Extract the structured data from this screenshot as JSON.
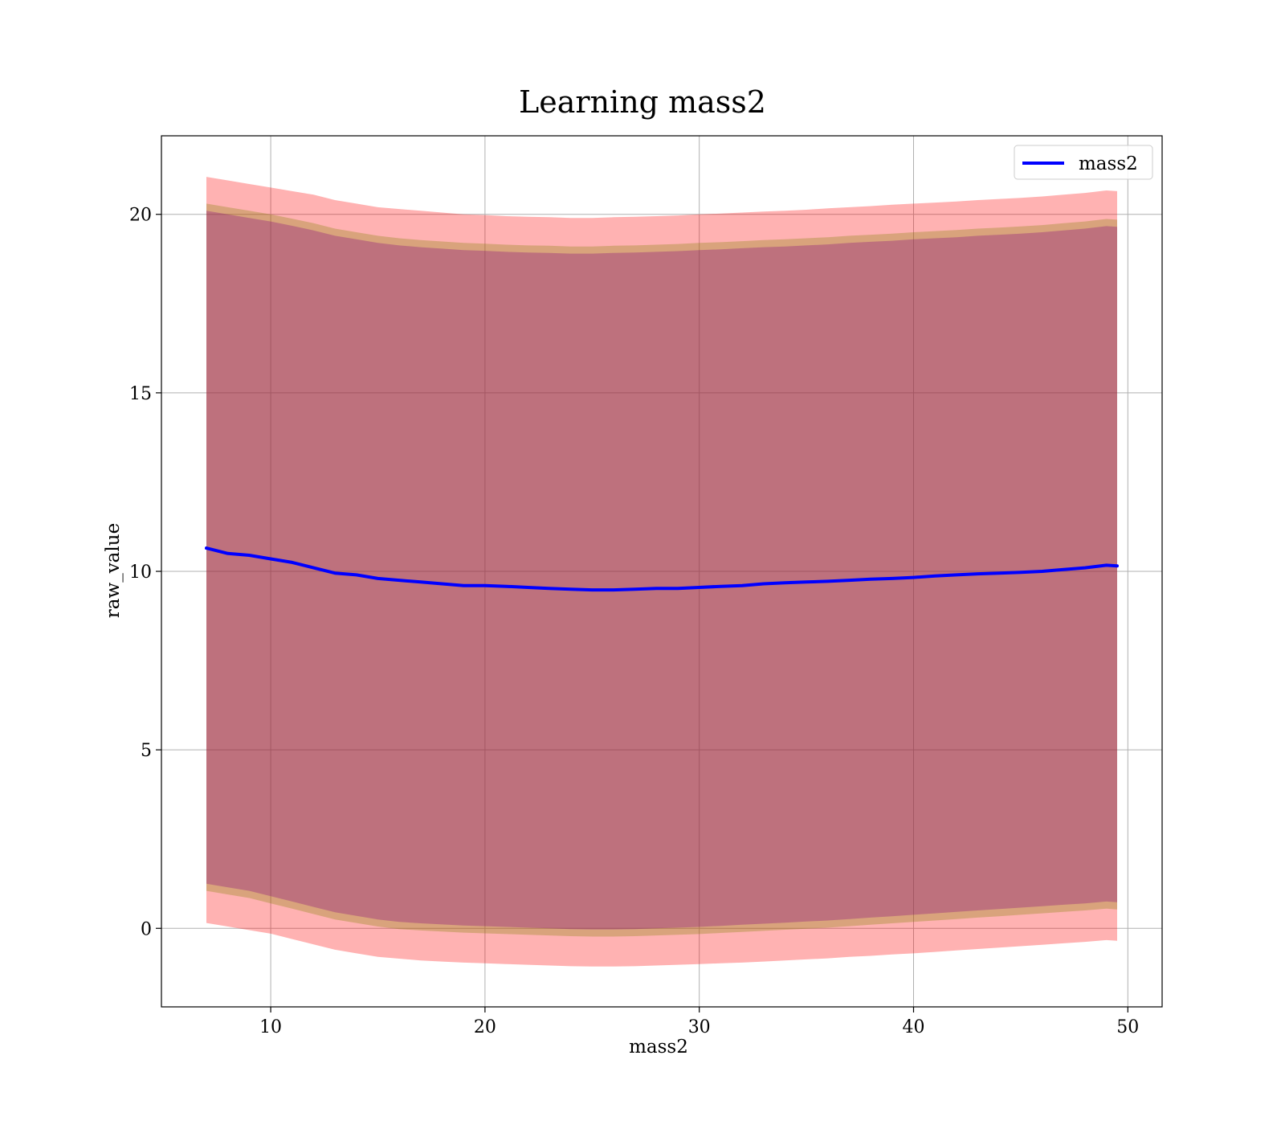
{
  "chart_data": {
    "type": "line",
    "title": "Learning mass2",
    "xlabel": "mass2",
    "ylabel": "raw_value",
    "xlim": [
      4.9,
      51.6
    ],
    "ylim": [
      -2.2,
      22.2
    ],
    "xticks": [
      10,
      20,
      30,
      40,
      50
    ],
    "yticks": [
      0,
      5,
      10,
      15,
      20
    ],
    "grid": true,
    "legend_position": "top-right",
    "colors": {
      "line": "#0000ff",
      "outer_band": "#ff0000",
      "inner_band": "#808000",
      "core_band": "#800080",
      "grid": "#b0b0b0"
    },
    "x": [
      7.0,
      8.0,
      9.0,
      10.0,
      11.0,
      12.0,
      13.0,
      14.0,
      15.0,
      16.0,
      17.0,
      18.0,
      19.0,
      20.0,
      21.0,
      22.0,
      23.0,
      24.0,
      25.0,
      26.0,
      27.0,
      28.0,
      29.0,
      30.0,
      31.0,
      32.0,
      33.0,
      34.0,
      35.0,
      36.0,
      37.0,
      38.0,
      39.0,
      40.0,
      41.0,
      42.0,
      43.0,
      44.0,
      45.0,
      46.0,
      47.0,
      48.0,
      49.0,
      49.5
    ],
    "series": [
      {
        "name": "mass2",
        "values": [
          10.65,
          10.5,
          10.45,
          10.35,
          10.25,
          10.1,
          9.95,
          9.9,
          9.8,
          9.75,
          9.7,
          9.65,
          9.6,
          9.6,
          9.58,
          9.55,
          9.52,
          9.5,
          9.48,
          9.48,
          9.5,
          9.52,
          9.52,
          9.55,
          9.58,
          9.6,
          9.65,
          9.68,
          9.7,
          9.72,
          9.75,
          9.78,
          9.8,
          9.83,
          9.87,
          9.9,
          9.93,
          9.95,
          9.97,
          10.0,
          10.05,
          10.1,
          10.17,
          10.15
        ]
      }
    ],
    "bands": [
      {
        "upper": [
          21.05,
          20.95,
          20.85,
          20.75,
          20.65,
          20.55,
          20.4,
          20.3,
          20.2,
          20.15,
          20.1,
          20.05,
          20.0,
          19.98,
          19.95,
          19.93,
          19.92,
          19.9,
          19.9,
          19.92,
          19.93,
          19.95,
          19.97,
          20.0,
          20.02,
          20.05,
          20.08,
          20.1,
          20.13,
          20.17,
          20.2,
          20.23,
          20.27,
          20.3,
          20.33,
          20.36,
          20.4,
          20.43,
          20.46,
          20.5,
          20.55,
          20.6,
          20.67,
          20.65
        ],
        "lower": [
          0.15,
          0.05,
          -0.05,
          -0.15,
          -0.3,
          -0.45,
          -0.6,
          -0.7,
          -0.8,
          -0.85,
          -0.9,
          -0.93,
          -0.96,
          -0.98,
          -1.0,
          -1.02,
          -1.04,
          -1.06,
          -1.07,
          -1.07,
          -1.06,
          -1.04,
          -1.02,
          -1.0,
          -0.98,
          -0.96,
          -0.93,
          -0.9,
          -0.87,
          -0.84,
          -0.8,
          -0.77,
          -0.73,
          -0.7,
          -0.66,
          -0.62,
          -0.58,
          -0.54,
          -0.5,
          -0.46,
          -0.42,
          -0.38,
          -0.33,
          -0.35
        ]
      },
      {
        "upper": [
          20.3,
          20.2,
          20.1,
          20.0,
          19.88,
          19.75,
          19.6,
          19.5,
          19.4,
          19.33,
          19.28,
          19.24,
          19.2,
          19.18,
          19.15,
          19.13,
          19.12,
          19.1,
          19.1,
          19.12,
          19.13,
          19.15,
          19.17,
          19.2,
          19.22,
          19.25,
          19.28,
          19.3,
          19.33,
          19.36,
          19.4,
          19.43,
          19.46,
          19.5,
          19.53,
          19.56,
          19.6,
          19.63,
          19.66,
          19.7,
          19.75,
          19.8,
          19.87,
          19.85
        ],
        "lower": [
          1.05,
          0.95,
          0.85,
          0.7,
          0.55,
          0.4,
          0.25,
          0.15,
          0.05,
          -0.02,
          -0.06,
          -0.09,
          -0.12,
          -0.14,
          -0.16,
          -0.18,
          -0.2,
          -0.22,
          -0.23,
          -0.23,
          -0.22,
          -0.2,
          -0.18,
          -0.16,
          -0.13,
          -0.1,
          -0.07,
          -0.04,
          -0.01,
          0.02,
          0.06,
          0.1,
          0.14,
          0.18,
          0.22,
          0.26,
          0.3,
          0.34,
          0.38,
          0.42,
          0.46,
          0.5,
          0.55,
          0.53
        ]
      },
      {
        "upper": [
          20.1,
          20.0,
          19.9,
          19.8,
          19.68,
          19.55,
          19.4,
          19.3,
          19.2,
          19.13,
          19.08,
          19.04,
          19.0,
          18.98,
          18.95,
          18.93,
          18.92,
          18.9,
          18.9,
          18.92,
          18.93,
          18.95,
          18.97,
          19.0,
          19.02,
          19.05,
          19.08,
          19.1,
          19.13,
          19.16,
          19.2,
          19.23,
          19.26,
          19.3,
          19.33,
          19.36,
          19.4,
          19.43,
          19.46,
          19.5,
          19.55,
          19.6,
          19.67,
          19.65
        ],
        "lower": [
          1.25,
          1.15,
          1.05,
          0.9,
          0.75,
          0.6,
          0.45,
          0.35,
          0.25,
          0.18,
          0.14,
          0.11,
          0.08,
          0.06,
          0.04,
          0.02,
          0.0,
          -0.02,
          -0.03,
          -0.03,
          -0.02,
          0.0,
          0.02,
          0.04,
          0.07,
          0.1,
          0.13,
          0.16,
          0.19,
          0.22,
          0.26,
          0.3,
          0.34,
          0.38,
          0.42,
          0.46,
          0.5,
          0.54,
          0.58,
          0.62,
          0.66,
          0.7,
          0.75,
          0.73
        ]
      }
    ]
  }
}
